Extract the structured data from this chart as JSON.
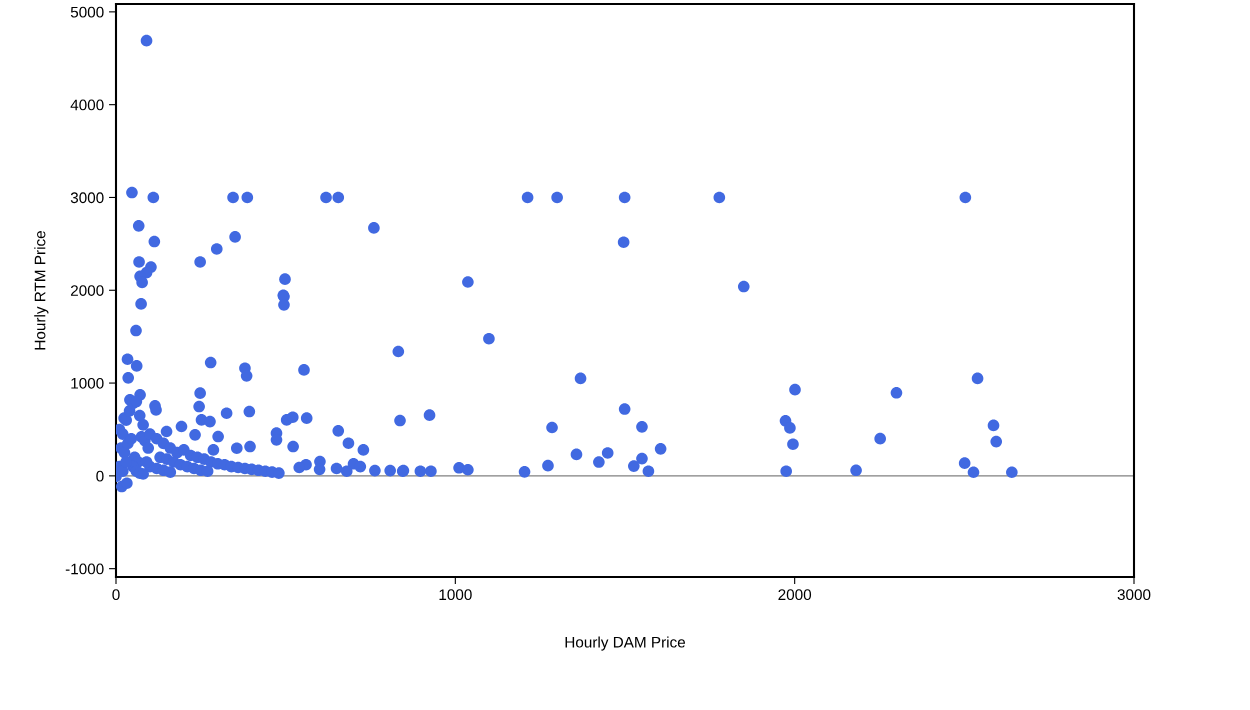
{
  "chart_data": {
    "type": "scatter",
    "xlabel": "Hourly DAM Price",
    "ylabel": "Hourly RTM Price",
    "xlim": [
      0,
      3000
    ],
    "ylim": [
      -1090,
      5085
    ],
    "xticks": [
      0,
      1000,
      2000,
      3000
    ],
    "yticks": [
      -1000,
      0,
      1000,
      2000,
      3000,
      4000,
      5000
    ],
    "grid": false,
    "marker": "circle",
    "ref_lines": [
      {
        "axis": "y",
        "value": 0,
        "label": null,
        "color": "#808080"
      }
    ],
    "series": [
      {
        "color": "#4169e1",
        "x": [
          90,
          47,
          110,
          345,
          387,
          619,
          655,
          760,
          67,
          113,
          351,
          297,
          248,
          68,
          103,
          90,
          71,
          77,
          498,
          493,
          74,
          59,
          34,
          61,
          36,
          495,
          495,
          832,
          279,
          380,
          385,
          554,
          248,
          71,
          41,
          115,
          118,
          245,
          326,
          393,
          252,
          277,
          503,
          521,
          562,
          837,
          24,
          655,
          473,
          473,
          301,
          522,
          685,
          729,
          193,
          149,
          233,
          287,
          395,
          356,
          601,
          763,
          808,
          847,
          17,
          32,
          0,
          1213,
          1300,
          1499,
          1778,
          2503,
          1496,
          1037,
          1850,
          1099,
          1369,
          2001,
          2300,
          2539,
          1499,
          924,
          1285,
          1550,
          1973,
          1986,
          2586,
          2594,
          1995,
          2252,
          1605,
          1357,
          1449,
          1423,
          1550,
          1526,
          1273,
          1569,
          1204,
          2501,
          2527,
          2640,
          2181,
          1975,
          1011,
          1037,
          897,
          928,
          845,
          700,
          720,
          650,
          680,
          600,
          560,
          540,
          10,
          20,
          30,
          40,
          50,
          60,
          70,
          80,
          15,
          25,
          35,
          45,
          55,
          65,
          75,
          85,
          95,
          100,
          120,
          140,
          160,
          180,
          200,
          220,
          240,
          260,
          280,
          300,
          320,
          340,
          360,
          380,
          400,
          420,
          440,
          460,
          480,
          130,
          150,
          170,
          190,
          210,
          230,
          250,
          270,
          100,
          120,
          140,
          160,
          50,
          60,
          70,
          80,
          90,
          10,
          20,
          30
        ],
        "values": [
          4690,
          3053,
          3000,
          3000,
          3000,
          3000,
          3000,
          2672,
          2694,
          2525,
          2575,
          2445,
          2305,
          2305,
          2250,
          2190,
          2150,
          2085,
          2120,
          1945,
          1853,
          1566,
          1257,
          1185,
          1056,
          1932,
          1843,
          1340,
          1221,
          1160,
          1078,
          1142,
          891,
          873,
          819,
          754,
          711,
          747,
          675,
          693,
          603,
          585,
          603,
          632,
          622,
          596,
          622,
          485,
          460,
          388,
          424,
          316,
          352,
          280,
          532,
          478,
          442,
          280,
          316,
          298,
          154,
          57,
          57,
          57,
          -115,
          -79,
          -7,
          3000,
          3000,
          3000,
          3000,
          3000,
          2518,
          2089,
          2040,
          1478,
          1050,
          929,
          895,
          1050,
          720,
          654,
          521,
          528,
          593,
          517,
          544,
          369,
          341,
          401,
          291,
          231,
          247,
          149,
          186,
          105,
          110,
          50,
          43,
          137,
          39,
          39,
          60,
          50,
          87,
          66,
          50,
          50,
          50,
          130,
          100,
          80,
          50,
          70,
          120,
          90,
          500,
          450,
          600,
          700,
          780,
          800,
          650,
          550,
          300,
          250,
          350,
          400,
          200,
          150,
          420,
          380,
          300,
          450,
          400,
          350,
          300,
          250,
          280,
          220,
          200,
          180,
          150,
          130,
          120,
          100,
          90,
          80,
          70,
          60,
          50,
          40,
          30,
          200,
          180,
          150,
          120,
          100,
          80,
          60,
          50,
          100,
          80,
          60,
          40,
          100,
          50,
          30,
          20,
          150,
          100,
          50,
          150
        ]
      }
    ]
  }
}
